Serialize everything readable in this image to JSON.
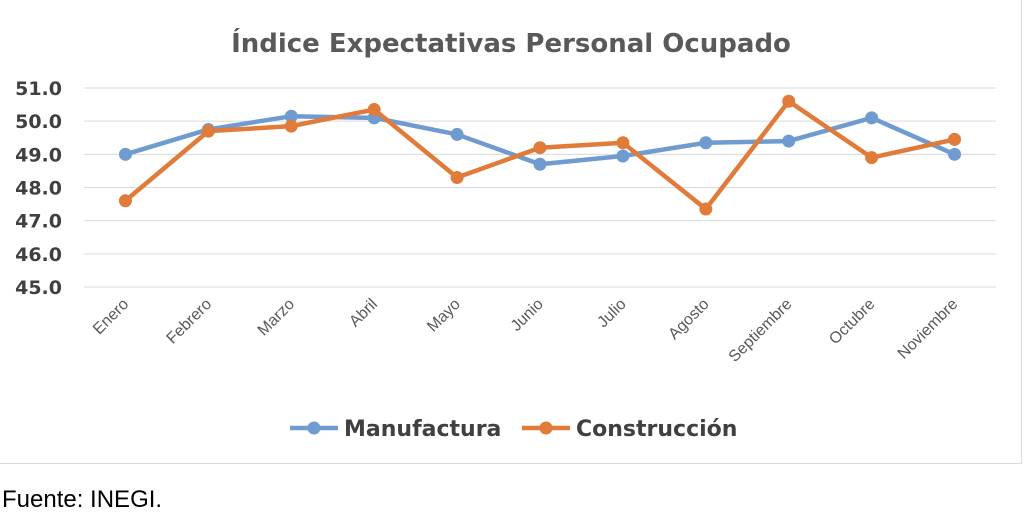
{
  "chart_data": {
    "type": "line",
    "title": "Índice Expectativas Personal Ocupado",
    "categories": [
      "Enero",
      "Febrero",
      "Marzo",
      "Abril",
      "Mayo",
      "Junio",
      "Julio",
      "Agosto",
      "Septiembre",
      "Octubre",
      "Noviembre"
    ],
    "series": [
      {
        "name": "Manufactura",
        "color": "#6f9bd1",
        "values": [
          49.0,
          49.75,
          50.15,
          50.1,
          49.6,
          48.7,
          48.95,
          49.35,
          49.4,
          50.1,
          49.0
        ]
      },
      {
        "name": "Construcción",
        "color": "#e07b39",
        "values": [
          47.6,
          49.7,
          49.85,
          50.35,
          48.3,
          49.2,
          49.35,
          47.35,
          50.6,
          48.9,
          49.45
        ]
      }
    ],
    "ylim": [
      45.0,
      51.0
    ],
    "yticks": [
      "45.0",
      "46.0",
      "47.0",
      "48.0",
      "49.0",
      "50.0",
      "51.0"
    ],
    "grid": true,
    "legend": "bottom",
    "xlabel": "",
    "ylabel": ""
  },
  "source_note": "Fuente: INEGI."
}
